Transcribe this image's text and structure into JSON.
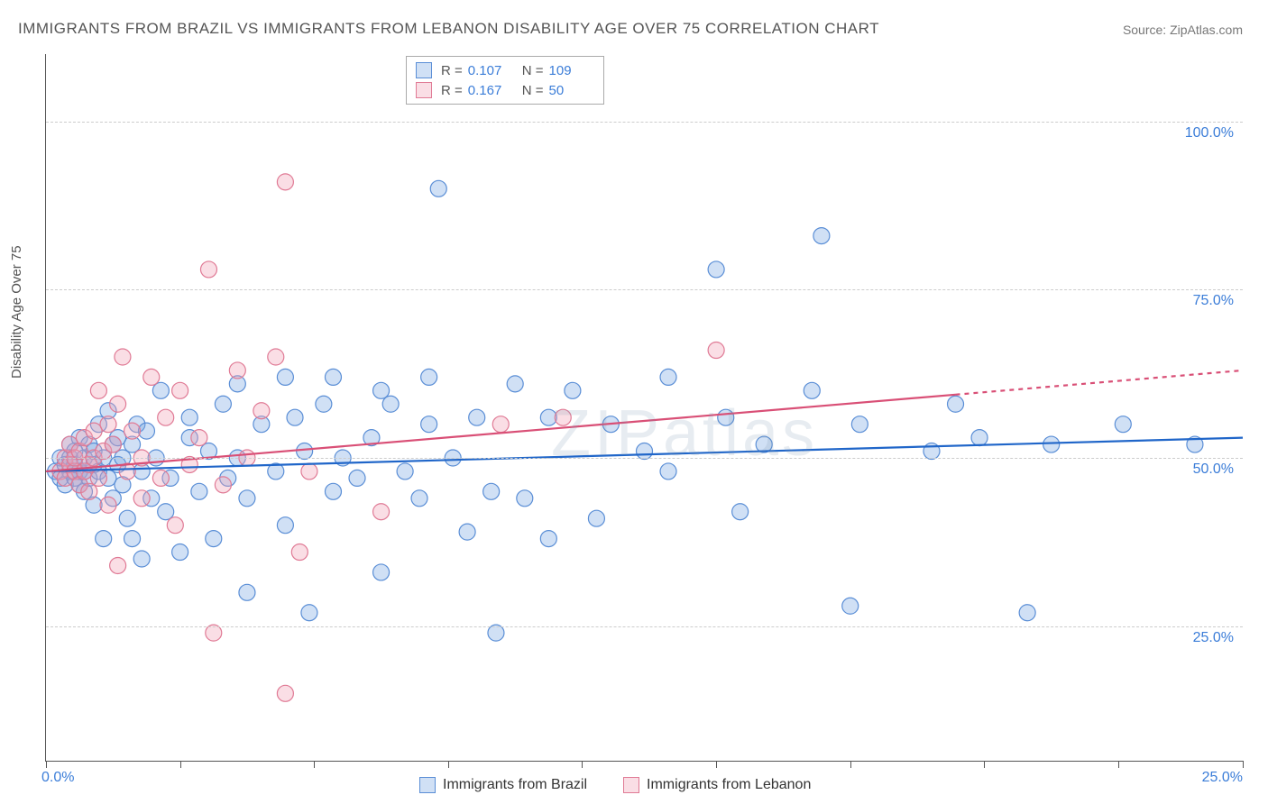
{
  "title": "IMMIGRANTS FROM BRAZIL VS IMMIGRANTS FROM LEBANON DISABILITY AGE OVER 75 CORRELATION CHART",
  "source_prefix": "Source: ",
  "source_name": "ZipAtlas.com",
  "watermark": "ZIPatlas",
  "ylabel": "Disability Age Over 75",
  "chart": {
    "type": "scatter-with-regression",
    "xlim": [
      0,
      25
    ],
    "ylim": [
      5,
      110
    ],
    "yticks": [
      25,
      50,
      75,
      100
    ],
    "ytick_labels": [
      "25.0%",
      "50.0%",
      "75.0%",
      "100.0%"
    ],
    "xtick_positions": [
      0,
      2.8,
      5.6,
      8.4,
      11.2,
      14.0,
      16.8,
      19.6,
      22.4,
      25.0
    ],
    "xorigin_label": "0.0%",
    "xmax_label": "25.0%",
    "grid_color": "#cccccc",
    "axis_color": "#555555",
    "background": "#ffffff",
    "marker_radius": 9,
    "marker_stroke_width": 1.2,
    "line_width": 2.2
  },
  "series": [
    {
      "name": "Immigrants from Brazil",
      "fill": "rgba(120,165,225,0.35)",
      "stroke": "#5a8ed6",
      "line_color": "#2066c9",
      "R": "0.107",
      "N": "109",
      "regression": {
        "x1": 0,
        "y1": 48,
        "x2": 25,
        "y2": 53,
        "dash_from_x": null
      },
      "points": [
        [
          0.2,
          48
        ],
        [
          0.3,
          50
        ],
        [
          0.3,
          47
        ],
        [
          0.4,
          49
        ],
        [
          0.4,
          46
        ],
        [
          0.5,
          52
        ],
        [
          0.5,
          48
        ],
        [
          0.5,
          50
        ],
        [
          0.6,
          47
        ],
        [
          0.6,
          51
        ],
        [
          0.6,
          49
        ],
        [
          0.7,
          46
        ],
        [
          0.7,
          48
        ],
        [
          0.7,
          53
        ],
        [
          0.8,
          50
        ],
        [
          0.8,
          45
        ],
        [
          0.8,
          48
        ],
        [
          0.9,
          52
        ],
        [
          0.9,
          47
        ],
        [
          1.0,
          49
        ],
        [
          1.0,
          51
        ],
        [
          1.0,
          43
        ],
        [
          1.1,
          48
        ],
        [
          1.1,
          55
        ],
        [
          1.2,
          50
        ],
        [
          1.2,
          38
        ],
        [
          1.3,
          57
        ],
        [
          1.3,
          47
        ],
        [
          1.4,
          52
        ],
        [
          1.4,
          44
        ],
        [
          1.5,
          49
        ],
        [
          1.5,
          53
        ],
        [
          1.6,
          46
        ],
        [
          1.6,
          50
        ],
        [
          1.7,
          41
        ],
        [
          1.8,
          52
        ],
        [
          1.8,
          38
        ],
        [
          1.9,
          55
        ],
        [
          2.0,
          48
        ],
        [
          2.0,
          35
        ],
        [
          2.1,
          54
        ],
        [
          2.2,
          44
        ],
        [
          2.3,
          50
        ],
        [
          2.4,
          60
        ],
        [
          2.5,
          42
        ],
        [
          2.6,
          47
        ],
        [
          2.8,
          36
        ],
        [
          3.0,
          53
        ],
        [
          3.0,
          56
        ],
        [
          3.2,
          45
        ],
        [
          3.4,
          51
        ],
        [
          3.5,
          38
        ],
        [
          3.7,
          58
        ],
        [
          3.8,
          47
        ],
        [
          4.0,
          50
        ],
        [
          4.0,
          61
        ],
        [
          4.2,
          30
        ],
        [
          4.2,
          44
        ],
        [
          4.5,
          55
        ],
        [
          4.8,
          48
        ],
        [
          5.0,
          62
        ],
        [
          5.0,
          40
        ],
        [
          5.2,
          56
        ],
        [
          5.4,
          51
        ],
        [
          5.5,
          27
        ],
        [
          5.8,
          58
        ],
        [
          6.0,
          45
        ],
        [
          6.0,
          62
        ],
        [
          6.2,
          50
        ],
        [
          6.5,
          47
        ],
        [
          6.8,
          53
        ],
        [
          7.0,
          60
        ],
        [
          7.0,
          33
        ],
        [
          7.2,
          58
        ],
        [
          7.5,
          48
        ],
        [
          7.8,
          44
        ],
        [
          8.0,
          55
        ],
        [
          8.0,
          62
        ],
        [
          8.2,
          90
        ],
        [
          8.5,
          50
        ],
        [
          8.8,
          39
        ],
        [
          9.0,
          56
        ],
        [
          9.3,
          45
        ],
        [
          9.4,
          24
        ],
        [
          9.8,
          61
        ],
        [
          10.0,
          44
        ],
        [
          10.5,
          38
        ],
        [
          10.5,
          56
        ],
        [
          11.0,
          60
        ],
        [
          11.5,
          41
        ],
        [
          11.8,
          55
        ],
        [
          12.5,
          51
        ],
        [
          13.0,
          62
        ],
        [
          13.0,
          48
        ],
        [
          14.0,
          78
        ],
        [
          14.2,
          56
        ],
        [
          14.5,
          42
        ],
        [
          15.0,
          52
        ],
        [
          16.0,
          60
        ],
        [
          16.2,
          83
        ],
        [
          16.8,
          28
        ],
        [
          17.0,
          55
        ],
        [
          18.5,
          51
        ],
        [
          19.0,
          58
        ],
        [
          19.5,
          53
        ],
        [
          20.5,
          27
        ],
        [
          21.0,
          52
        ],
        [
          22.5,
          55
        ],
        [
          24.0,
          52
        ]
      ]
    },
    {
      "name": "Immigrants from Lebanon",
      "fill": "rgba(240,160,180,0.35)",
      "stroke": "#e07a95",
      "line_color": "#d94f76",
      "R": "0.167",
      "N": "50",
      "regression": {
        "x1": 0,
        "y1": 48,
        "x2": 25,
        "y2": 63,
        "dash_from_x": 19
      },
      "points": [
        [
          0.3,
          48
        ],
        [
          0.4,
          50
        ],
        [
          0.4,
          47
        ],
        [
          0.5,
          49
        ],
        [
          0.5,
          52
        ],
        [
          0.6,
          48
        ],
        [
          0.6,
          50
        ],
        [
          0.7,
          46
        ],
        [
          0.7,
          51
        ],
        [
          0.8,
          48
        ],
        [
          0.8,
          53
        ],
        [
          0.9,
          49
        ],
        [
          0.9,
          45
        ],
        [
          1.0,
          50
        ],
        [
          1.0,
          54
        ],
        [
          1.1,
          47
        ],
        [
          1.1,
          60
        ],
        [
          1.2,
          51
        ],
        [
          1.3,
          55
        ],
        [
          1.3,
          43
        ],
        [
          1.4,
          52
        ],
        [
          1.5,
          34
        ],
        [
          1.5,
          58
        ],
        [
          1.6,
          65
        ],
        [
          1.7,
          48
        ],
        [
          1.8,
          54
        ],
        [
          2.0,
          50
        ],
        [
          2.0,
          44
        ],
        [
          2.2,
          62
        ],
        [
          2.4,
          47
        ],
        [
          2.5,
          56
        ],
        [
          2.7,
          40
        ],
        [
          2.8,
          60
        ],
        [
          3.0,
          49
        ],
        [
          3.2,
          53
        ],
        [
          3.4,
          78
        ],
        [
          3.5,
          24
        ],
        [
          3.7,
          46
        ],
        [
          4.0,
          63
        ],
        [
          4.2,
          50
        ],
        [
          4.5,
          57
        ],
        [
          4.8,
          65
        ],
        [
          5.0,
          15
        ],
        [
          5.0,
          91
        ],
        [
          5.3,
          36
        ],
        [
          5.5,
          48
        ],
        [
          7.0,
          42
        ],
        [
          9.5,
          55
        ],
        [
          10.8,
          56
        ],
        [
          14.0,
          66
        ]
      ]
    }
  ],
  "legend_bottom": [
    {
      "label": "Immigrants from Brazil",
      "fill": "rgba(120,165,225,0.35)",
      "stroke": "#5a8ed6"
    },
    {
      "label": "Immigrants from Lebanon",
      "fill": "rgba(240,160,180,0.35)",
      "stroke": "#e07a95"
    }
  ]
}
